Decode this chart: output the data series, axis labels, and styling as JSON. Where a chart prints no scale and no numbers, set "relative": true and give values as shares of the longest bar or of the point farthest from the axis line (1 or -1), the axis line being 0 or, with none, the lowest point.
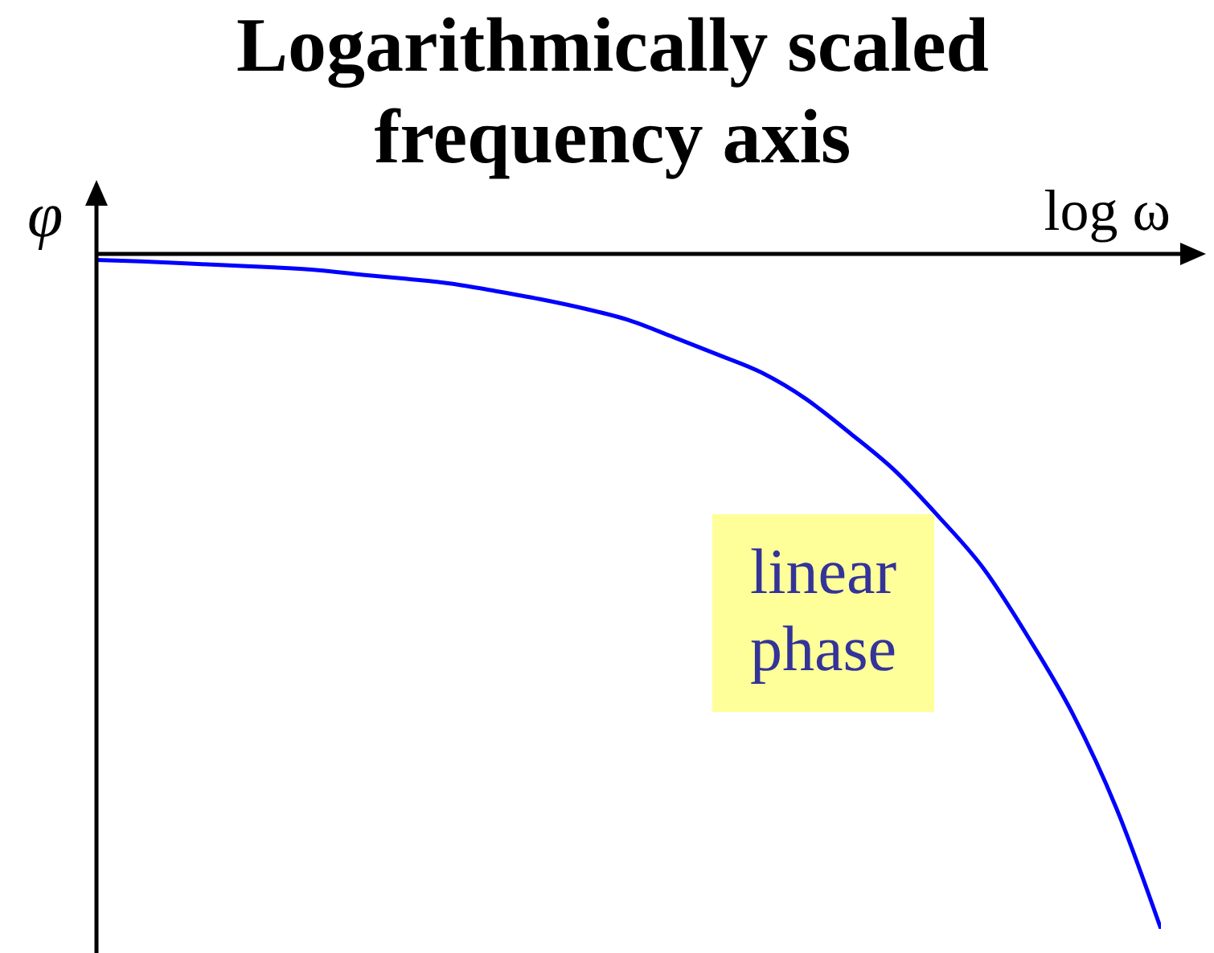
{
  "chart_data": {
    "type": "line",
    "title": "Logarithmically scaled frequency axis",
    "xlabel": "log ω",
    "ylabel": "φ",
    "annotations": [
      "linear phase"
    ],
    "categories": [
      null,
      null,
      null,
      null,
      null,
      null,
      null,
      null,
      null,
      null,
      null,
      null,
      null,
      null,
      null,
      null,
      null,
      null,
      null,
      null,
      null,
      null,
      null,
      null,
      null
    ],
    "values": [
      -0.009,
      -0.011,
      -0.014,
      -0.017,
      -0.02,
      -0.024,
      -0.031,
      -0.037,
      -0.044,
      -0.055,
      -0.067,
      -0.081,
      -0.098,
      -0.123,
      -0.149,
      -0.176,
      -0.215,
      -0.266,
      -0.321,
      -0.39,
      -0.466,
      -0.567,
      -0.68,
      -0.822,
      -1
    ],
    "color": "#0000ff",
    "relative": true,
    "marker": "none",
    "line_style": "solid"
  }
}
